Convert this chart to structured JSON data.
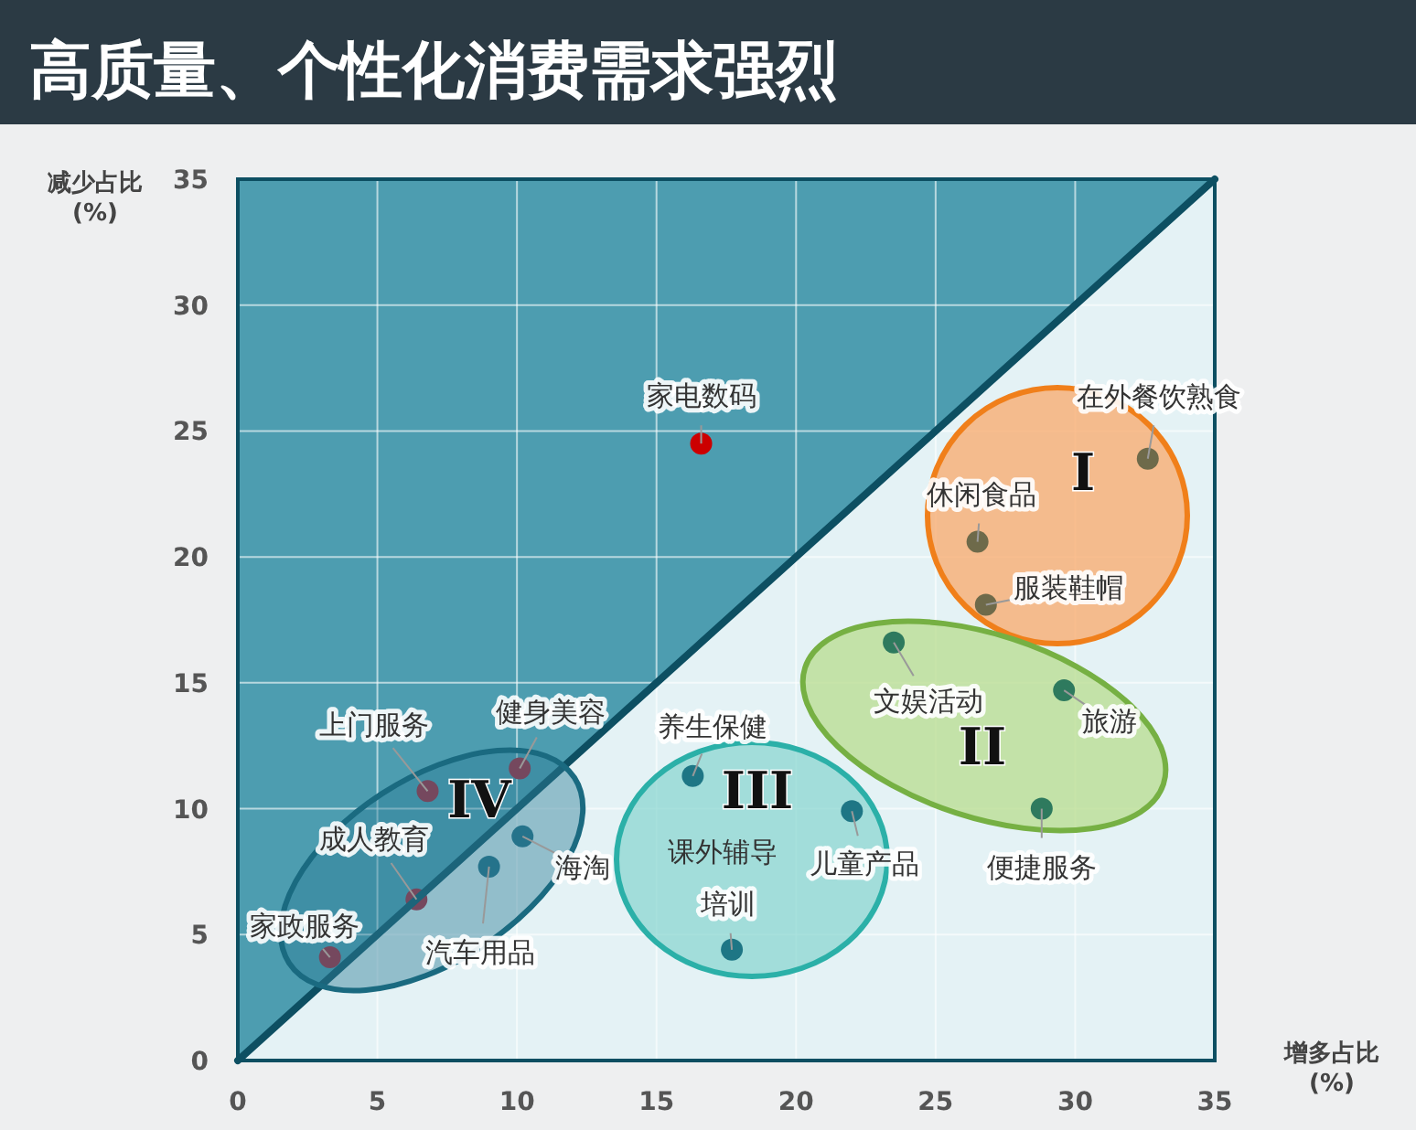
{
  "chart_data": {
    "type": "scatter",
    "title": "高质量、个性化消费需求强烈",
    "xlabel": "增多占比\n(%)",
    "ylabel": "减少占比\n(%)",
    "xlim": [
      0,
      35
    ],
    "ylim": [
      0,
      35
    ],
    "xticks": [
      0,
      5,
      10,
      15,
      20,
      25,
      30,
      35
    ],
    "yticks": [
      0,
      5,
      10,
      15,
      20,
      25,
      30,
      35
    ],
    "grid": true,
    "marker": "circle",
    "series": [
      {
        "x": [
          16.6,
          32.6,
          26.5,
          26.8,
          23.5,
          29.6,
          28.8,
          16.3,
          22.0,
          17.7,
          6.8,
          10.1,
          6.4,
          3.3,
          10.2,
          9.0
        ],
        "values": [
          24.5,
          23.9,
          20.6,
          18.1,
          16.6,
          14.7,
          10.0,
          11.3,
          9.9,
          4.4,
          10.7,
          11.6,
          6.4,
          4.1,
          8.9,
          7.7
        ],
        "colors": [
          "#cc0000",
          "#6e6a4a",
          "#6e6a4a",
          "#6e6a4a",
          "#2e7a5e",
          "#2e7a5e",
          "#2e7a5e",
          "#1e7685",
          "#1e7685",
          "#1e7685",
          "#b01c2e",
          "#b01c2e",
          "#b01c2e",
          "#b01c2e",
          "#1e6a80",
          "#1e6a80"
        ]
      },
      {
        "type": "line",
        "x": [
          0,
          35
        ],
        "values": [
          0,
          35
        ],
        "color": "#0d4f62",
        "marker": "none"
      }
    ],
    "annotations": [
      {
        "text": "家电数码",
        "x": 16.6,
        "y": 24.5
      },
      {
        "text": "在外餐饮熟食",
        "x": 32.6,
        "y": 23.9
      },
      {
        "text": "休闲食品",
        "x": 26.5,
        "y": 20.6
      },
      {
        "text": "服装鞋帽",
        "x": 26.8,
        "y": 18.1
      },
      {
        "text": "文娱活动",
        "x": 23.5,
        "y": 16.6
      },
      {
        "text": "旅游",
        "x": 29.6,
        "y": 14.7
      },
      {
        "text": "便捷服务",
        "x": 28.8,
        "y": 10.0
      },
      {
        "text": "养生保健",
        "x": 16.3,
        "y": 11.3
      },
      {
        "text": "儿童产品",
        "x": 22.0,
        "y": 9.9
      },
      {
        "text": "培训",
        "x": 17.7,
        "y": 4.4
      },
      {
        "text": "上门服务",
        "x": 6.8,
        "y": 10.7
      },
      {
        "text": "健身美容",
        "x": 10.1,
        "y": 11.6
      },
      {
        "text": "成人教育",
        "x": 6.4,
        "y": 6.4
      },
      {
        "text": "家政服务",
        "x": 3.3,
        "y": 4.1
      },
      {
        "text": "海淘",
        "x": 10.2,
        "y": 8.9
      },
      {
        "text": "汽车用品",
        "x": 9.0,
        "y": 7.7
      },
      "课外辅导",
      "I",
      "II",
      "III",
      "IV"
    ]
  }
}
